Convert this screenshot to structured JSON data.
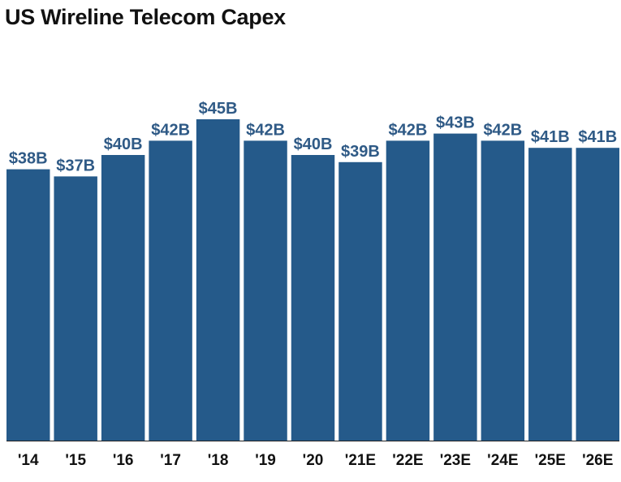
{
  "chart_data": {
    "type": "bar",
    "title": "US Wireline Telecom Capex",
    "categories": [
      "'14",
      "'15",
      "'16",
      "'17",
      "'18",
      "'19",
      "'20",
      "'21E",
      "'22E",
      "'23E",
      "'24E",
      "'25E",
      "'26E"
    ],
    "values": [
      38,
      37,
      40,
      42,
      45,
      42,
      40,
      39,
      42,
      43,
      42,
      41,
      41
    ],
    "data_labels": [
      "$38B",
      "$37B",
      "$40B",
      "$42B",
      "$45B",
      "$42B",
      "$40B",
      "$39B",
      "$42B",
      "$43B",
      "$42B",
      "$41B",
      "$41B"
    ],
    "xlabel": "",
    "ylabel": "",
    "ylim": [
      0,
      50
    ],
    "grid": false,
    "legend": "none",
    "colors": {
      "bar": "#255A8A",
      "label": "#2F5A86",
      "text": "#111111",
      "baseline": "#222222"
    }
  }
}
